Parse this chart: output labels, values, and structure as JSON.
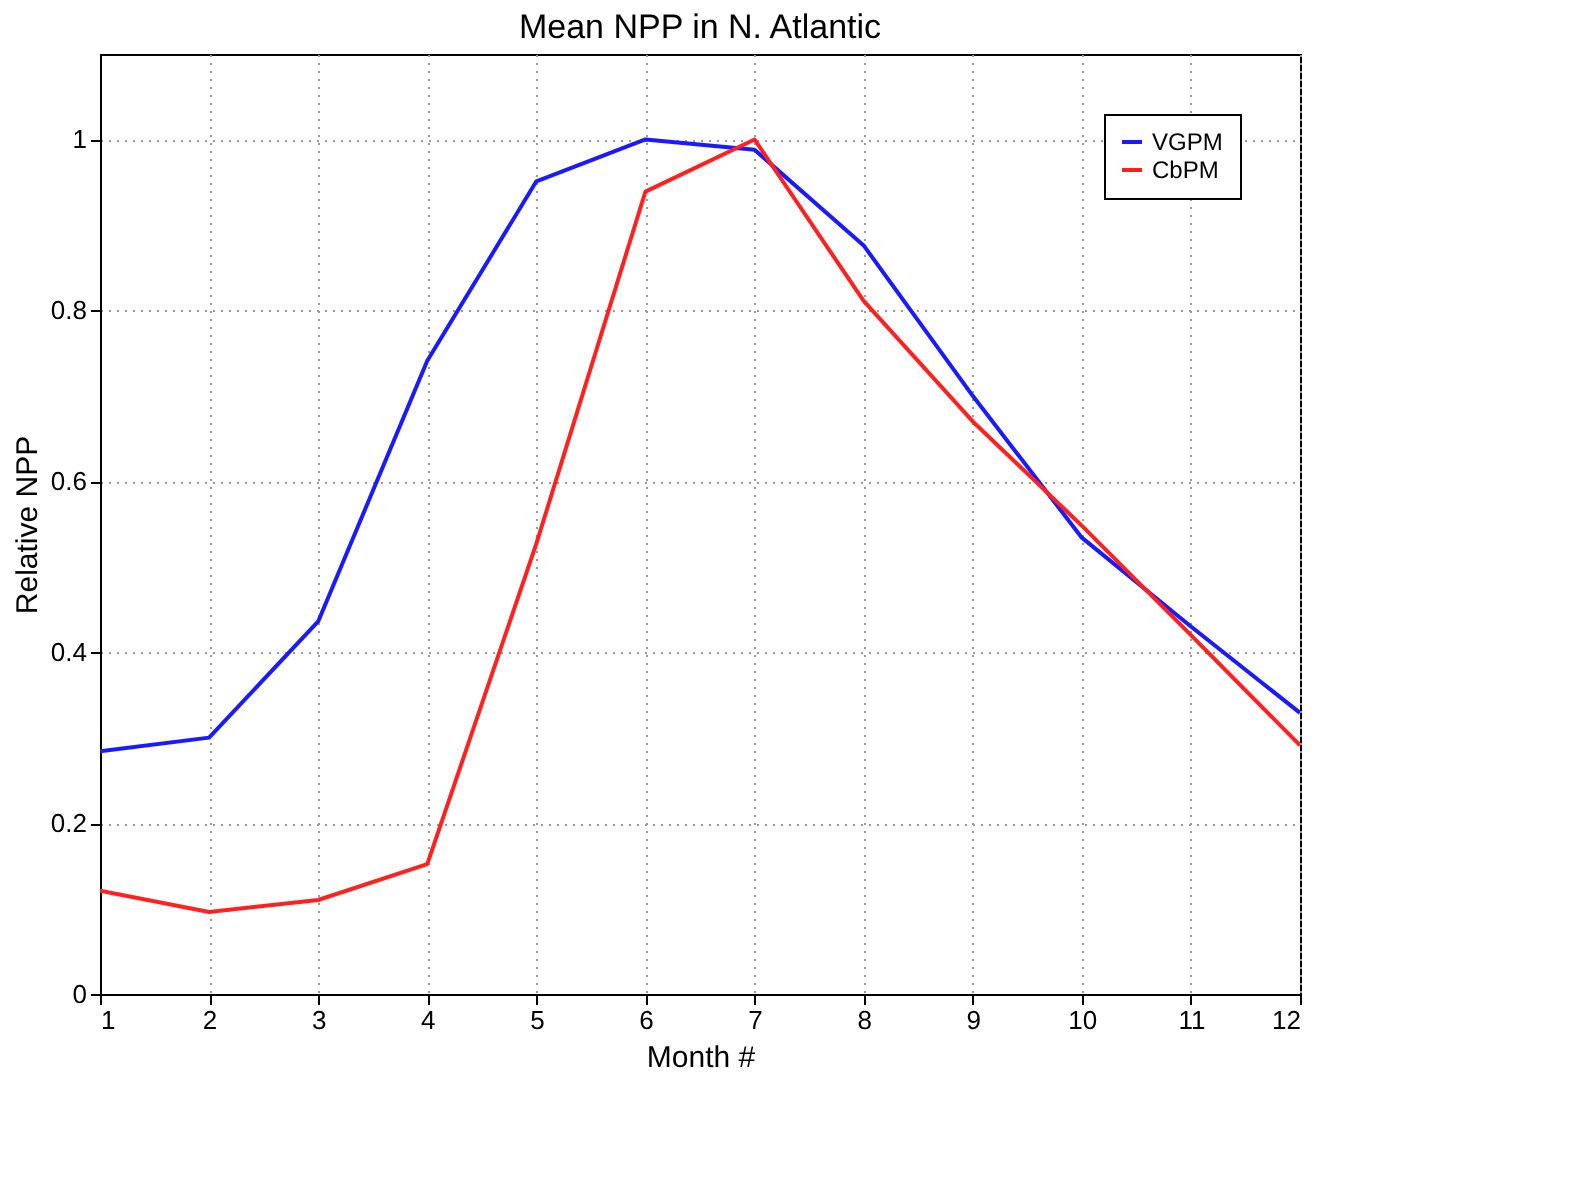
{
  "chart_data": {
    "type": "line",
    "title": "Mean NPP in N. Atlantic",
    "xlabel": "Month #",
    "ylabel": "Relative NPP",
    "x": [
      1,
      2,
      3,
      4,
      5,
      6,
      7,
      8,
      9,
      10,
      11,
      12
    ],
    "series": [
      {
        "name": "VGPM",
        "color": "#1a1aff",
        "values": [
          0.284,
          0.3,
          0.436,
          0.741,
          0.951,
          1.0,
          0.988,
          0.876,
          0.7,
          0.534,
          0.43,
          0.329
        ]
      },
      {
        "name": "CbPM",
        "color": "#ff2020",
        "values": [
          0.121,
          0.096,
          0.11,
          0.152,
          0.527,
          0.939,
          1.0,
          0.811,
          0.67,
          0.548,
          0.42,
          0.291
        ]
      }
    ],
    "xlim": [
      1,
      12
    ],
    "ylim": [
      0,
      1.1
    ],
    "xticks": [
      1,
      2,
      3,
      4,
      5,
      6,
      7,
      8,
      9,
      10,
      11,
      12
    ],
    "yticks": [
      0,
      0.2,
      0.4,
      0.6,
      0.8,
      1
    ],
    "grid": true,
    "legend": "top right",
    "marker": "none",
    "line_style": "solid"
  }
}
